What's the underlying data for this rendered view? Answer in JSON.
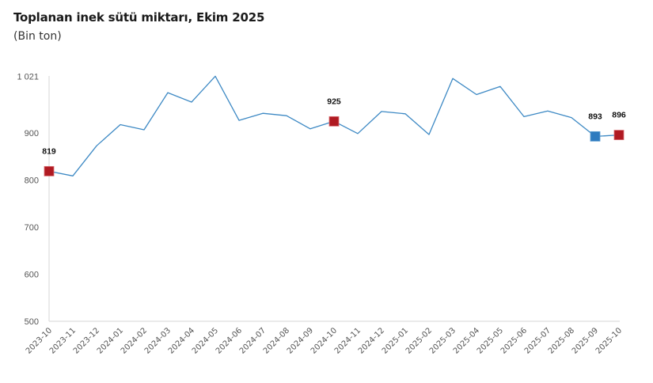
{
  "header": {
    "title": "Toplanan inek sütü miktarı, Ekim 2025",
    "subtitle": "(Bin ton)"
  },
  "colors": {
    "line": "#3d89c4",
    "highlight_red": "#b01a22",
    "highlight_blue": "#2e7bbf",
    "axis": "#e3e3e3"
  },
  "chart_data": {
    "type": "line",
    "title": "Toplanan inek sütü miktarı, Ekim 2025",
    "subtitle": "(Bin ton)",
    "xlabel": "",
    "ylabel": "Bin ton",
    "ylim": [
      500,
      1021
    ],
    "yticks": [
      500,
      600,
      700,
      800,
      900,
      1021
    ],
    "ytick_labels": [
      "500",
      "600",
      "700",
      "800",
      "900",
      "1 021"
    ],
    "grid": false,
    "legend": null,
    "categories": [
      "2023-10",
      "2023-11",
      "2023-12",
      "2024-01",
      "2024-02",
      "2024-03",
      "2024-04",
      "2024-05",
      "2024-06",
      "2024-07",
      "2024-08",
      "2024-09",
      "2024-10",
      "2024-11",
      "2024-12",
      "2025-01",
      "2025-02",
      "2025-03",
      "2025-04",
      "2025-05",
      "2025-06",
      "2025-07",
      "2025-08",
      "2025-09",
      "2025-10"
    ],
    "series": [
      {
        "name": "Toplanan inek sütü miktarı",
        "values": [
          819,
          809,
          873,
          918,
          907,
          986,
          966,
          1021,
          927,
          942,
          937,
          909,
          925,
          899,
          946,
          941,
          897,
          1016,
          982,
          999,
          935,
          947,
          933,
          893,
          896
        ]
      }
    ],
    "highlighted_points": [
      {
        "category": "2023-10",
        "value": 819,
        "label": "819",
        "color": "red"
      },
      {
        "category": "2024-10",
        "value": 925,
        "label": "925",
        "color": "red"
      },
      {
        "category": "2025-09",
        "value": 893,
        "label": "893",
        "color": "blue"
      },
      {
        "category": "2025-10",
        "value": 896,
        "label": "896",
        "color": "red"
      }
    ]
  }
}
